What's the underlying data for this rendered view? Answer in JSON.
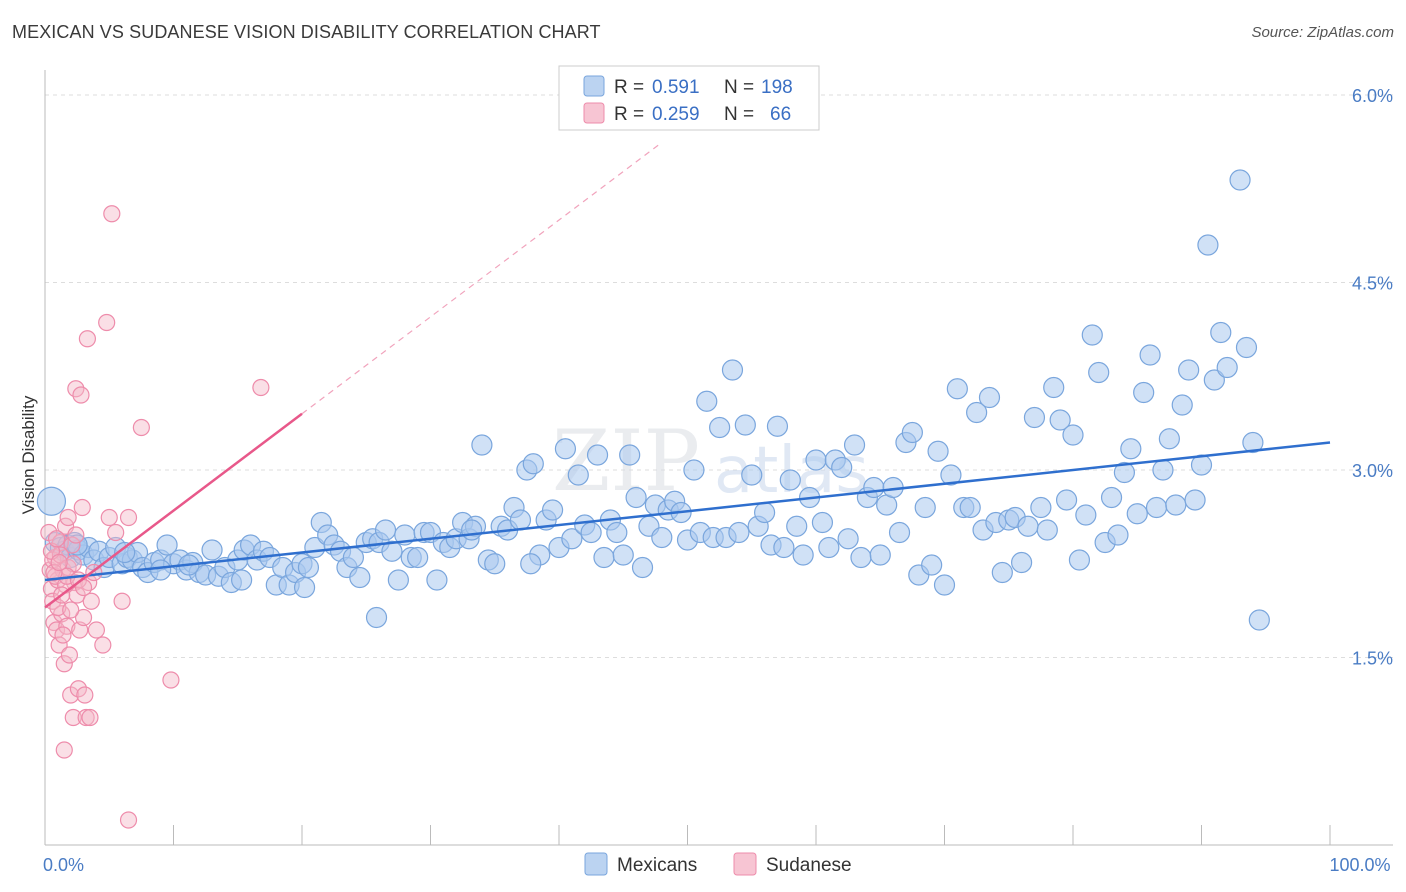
{
  "title": "MEXICAN VS SUDANESE VISION DISABILITY CORRELATION CHART",
  "source": "Source: ZipAtlas.com",
  "watermark": {
    "zip": "ZIP",
    "atlas": "atlas"
  },
  "colors": {
    "mexicans_fill": "#aac8ee",
    "mexicans_stroke": "#7aa6dd",
    "mexicans_line": "#2f6fce",
    "sudanese_fill": "#f5b7c8",
    "sudanese_stroke": "#ee8cab",
    "sudanese_line": "#e8588a",
    "axis_tick": "#4a7cc4",
    "grid": "#dddddd"
  },
  "legend": {
    "rows": [
      {
        "r_label": "R =",
        "r_value": "0.591",
        "n_label": "N =",
        "n_value": "198"
      },
      {
        "r_label": "R =",
        "r_value": "0.259",
        "n_label": "N =",
        "n_value": "66"
      }
    ]
  },
  "chart_data": {
    "type": "scatter",
    "title": "MEXICAN VS SUDANESE VISION DISABILITY CORRELATION CHART",
    "ylabel": "Vision Disability",
    "xlabel": "",
    "xlim": [
      0,
      100
    ],
    "ylim": [
      0.0,
      6.2
    ],
    "y_ticks": [
      {
        "value": 1.5,
        "label": "1.5%"
      },
      {
        "value": 3.0,
        "label": "3.0%"
      },
      {
        "value": 4.5,
        "label": "4.5%"
      },
      {
        "value": 6.0,
        "label": "6.0%"
      }
    ],
    "x_ticks": [
      {
        "value": 0,
        "label": "0.0%"
      },
      {
        "value": 100,
        "label": "100.0%"
      }
    ],
    "grid": true,
    "legend_position": "top-center",
    "series": [
      {
        "name": "Mexicans",
        "trend": {
          "x": [
            0,
            100
          ],
          "y": [
            2.12,
            3.22
          ],
          "dashed": false
        },
        "points": [
          [
            0.5,
            2.75
          ],
          [
            0.8,
            2.42
          ],
          [
            1.2,
            2.38
          ],
          [
            1.5,
            2.35
          ],
          [
            1.8,
            2.4
          ],
          [
            2.0,
            2.3
          ],
          [
            2.3,
            2.42
          ],
          [
            2.6,
            2.36
          ],
          [
            3.0,
            2.32
          ],
          [
            3.4,
            2.38
          ],
          [
            3.8,
            2.28
          ],
          [
            4.2,
            2.35
          ],
          [
            4.6,
            2.22
          ],
          [
            5.0,
            2.3
          ],
          [
            5.5,
            2.38
          ],
          [
            6.0,
            2.25
          ],
          [
            6.4,
            2.3
          ],
          [
            6.8,
            2.28
          ],
          [
            7.2,
            2.34
          ],
          [
            7.6,
            2.22
          ],
          [
            8.0,
            2.18
          ],
          [
            8.5,
            2.26
          ],
          [
            9.0,
            2.28
          ],
          [
            9.5,
            2.4
          ],
          [
            10.0,
            2.25
          ],
          [
            10.5,
            2.28
          ],
          [
            11.0,
            2.2
          ],
          [
            11.5,
            2.26
          ],
          [
            12.0,
            2.18
          ],
          [
            12.5,
            2.16
          ],
          [
            13.0,
            2.36
          ],
          [
            13.5,
            2.15
          ],
          [
            14.0,
            2.22
          ],
          [
            14.5,
            2.1
          ],
          [
            15.0,
            2.28
          ],
          [
            15.5,
            2.36
          ],
          [
            16.0,
            2.4
          ],
          [
            16.5,
            2.28
          ],
          [
            17.0,
            2.35
          ],
          [
            17.5,
            2.3
          ],
          [
            18.0,
            2.08
          ],
          [
            18.5,
            2.22
          ],
          [
            19.0,
            2.08
          ],
          [
            19.5,
            2.18
          ],
          [
            20.0,
            2.25
          ],
          [
            20.5,
            2.22
          ],
          [
            21.0,
            2.38
          ],
          [
            21.5,
            2.58
          ],
          [
            22.0,
            2.48
          ],
          [
            22.5,
            2.4
          ],
          [
            23.0,
            2.35
          ],
          [
            23.5,
            2.22
          ],
          [
            24.0,
            2.3
          ],
          [
            24.5,
            2.14
          ],
          [
            25.0,
            2.42
          ],
          [
            25.5,
            2.45
          ],
          [
            26.0,
            2.42
          ],
          [
            26.5,
            2.52
          ],
          [
            27.0,
            2.35
          ],
          [
            27.5,
            2.12
          ],
          [
            28.0,
            2.48
          ],
          [
            28.5,
            2.3
          ],
          [
            29.0,
            2.3
          ],
          [
            29.5,
            2.5
          ],
          [
            30.0,
            2.5
          ],
          [
            30.5,
            2.12
          ],
          [
            31.0,
            2.42
          ],
          [
            31.5,
            2.38
          ],
          [
            32.0,
            2.45
          ],
          [
            32.5,
            2.58
          ],
          [
            33.0,
            2.45
          ],
          [
            33.5,
            2.55
          ],
          [
            34.0,
            3.2
          ],
          [
            34.5,
            2.28
          ],
          [
            35.0,
            2.25
          ],
          [
            35.5,
            2.55
          ],
          [
            36.0,
            2.52
          ],
          [
            36.5,
            2.7
          ],
          [
            37.0,
            2.6
          ],
          [
            37.5,
            3.0
          ],
          [
            38.0,
            3.05
          ],
          [
            38.5,
            2.32
          ],
          [
            39.0,
            2.6
          ],
          [
            39.5,
            2.68
          ],
          [
            40.0,
            2.38
          ],
          [
            40.5,
            3.17
          ],
          [
            41.0,
            2.45
          ],
          [
            41.5,
            2.96
          ],
          [
            42.0,
            2.56
          ],
          [
            42.5,
            2.5
          ],
          [
            43.0,
            3.12
          ],
          [
            43.5,
            2.3
          ],
          [
            44.0,
            2.6
          ],
          [
            44.5,
            2.5
          ],
          [
            45.0,
            2.32
          ],
          [
            45.5,
            3.12
          ],
          [
            46.0,
            2.78
          ],
          [
            46.5,
            2.22
          ],
          [
            47.0,
            2.55
          ],
          [
            47.5,
            2.72
          ],
          [
            48.0,
            2.46
          ],
          [
            48.5,
            2.68
          ],
          [
            49.0,
            2.75
          ],
          [
            49.5,
            2.66
          ],
          [
            50.0,
            2.44
          ],
          [
            50.5,
            3.0
          ],
          [
            51.0,
            2.5
          ],
          [
            51.5,
            3.55
          ],
          [
            52.0,
            2.46
          ],
          [
            52.5,
            3.34
          ],
          [
            53.0,
            2.46
          ],
          [
            53.5,
            3.8
          ],
          [
            54.0,
            2.5
          ],
          [
            54.5,
            3.36
          ],
          [
            55.0,
            2.96
          ],
          [
            55.5,
            2.55
          ],
          [
            56.0,
            2.66
          ],
          [
            56.5,
            2.4
          ],
          [
            57.0,
            3.35
          ],
          [
            57.5,
            2.38
          ],
          [
            58.0,
            2.92
          ],
          [
            58.5,
            2.55
          ],
          [
            59.0,
            2.32
          ],
          [
            59.5,
            2.78
          ],
          [
            60.0,
            3.08
          ],
          [
            60.5,
            2.58
          ],
          [
            61.0,
            2.38
          ],
          [
            61.5,
            3.08
          ],
          [
            62.0,
            3.02
          ],
          [
            62.5,
            2.45
          ],
          [
            63.0,
            3.2
          ],
          [
            63.5,
            2.3
          ],
          [
            64.0,
            2.78
          ],
          [
            64.5,
            2.86
          ],
          [
            65.0,
            2.32
          ],
          [
            65.5,
            2.72
          ],
          [
            66.0,
            2.86
          ],
          [
            66.5,
            2.5
          ],
          [
            67.0,
            3.22
          ],
          [
            67.5,
            3.3
          ],
          [
            68.0,
            2.16
          ],
          [
            68.5,
            2.7
          ],
          [
            69.0,
            2.24
          ],
          [
            69.5,
            3.15
          ],
          [
            70.0,
            2.08
          ],
          [
            70.5,
            2.96
          ],
          [
            71.0,
            3.65
          ],
          [
            71.5,
            2.7
          ],
          [
            72.0,
            2.7
          ],
          [
            72.5,
            3.46
          ],
          [
            73.0,
            2.52
          ],
          [
            73.5,
            3.58
          ],
          [
            74.0,
            2.58
          ],
          [
            74.5,
            2.18
          ],
          [
            75.0,
            2.6
          ],
          [
            75.5,
            2.62
          ],
          [
            76.0,
            2.26
          ],
          [
            76.5,
            2.55
          ],
          [
            77.0,
            3.42
          ],
          [
            77.5,
            2.7
          ],
          [
            78.0,
            2.52
          ],
          [
            78.5,
            3.66
          ],
          [
            79.0,
            3.4
          ],
          [
            79.5,
            2.76
          ],
          [
            80.0,
            3.28
          ],
          [
            80.5,
            2.28
          ],
          [
            81.0,
            2.64
          ],
          [
            81.5,
            4.08
          ],
          [
            82.0,
            3.78
          ],
          [
            82.5,
            2.42
          ],
          [
            83.0,
            2.78
          ],
          [
            83.5,
            2.48
          ],
          [
            84.0,
            2.98
          ],
          [
            84.5,
            3.17
          ],
          [
            85.0,
            2.65
          ],
          [
            85.5,
            3.62
          ],
          [
            86.0,
            3.92
          ],
          [
            86.5,
            2.7
          ],
          [
            87.0,
            3.0
          ],
          [
            87.5,
            3.25
          ],
          [
            88.0,
            2.72
          ],
          [
            88.5,
            3.52
          ],
          [
            89.0,
            3.8
          ],
          [
            89.5,
            2.76
          ],
          [
            90.0,
            3.04
          ],
          [
            90.5,
            4.8
          ],
          [
            91.0,
            3.72
          ],
          [
            91.5,
            4.1
          ],
          [
            92.0,
            3.82
          ],
          [
            93.0,
            5.32
          ],
          [
            93.5,
            3.98
          ],
          [
            94.0,
            3.22
          ],
          [
            94.5,
            1.8
          ],
          [
            2.5,
            2.4
          ],
          [
            6.2,
            2.34
          ],
          [
            9.0,
            2.2
          ],
          [
            11.2,
            2.24
          ],
          [
            15.3,
            2.12
          ],
          [
            20.2,
            2.06
          ],
          [
            25.8,
            1.82
          ],
          [
            33.2,
            2.52
          ],
          [
            37.8,
            2.25
          ]
        ]
      },
      {
        "name": "Sudanese",
        "trend": {
          "x": [
            0,
            20
          ],
          "y": [
            1.9,
            3.45
          ],
          "dashed": false,
          "extension": {
            "x": [
              20,
              48
            ],
            "y": [
              3.45,
              5.62
            ],
            "dashed": true
          }
        },
        "points": [
          [
            0.3,
            2.5
          ],
          [
            0.4,
            2.2
          ],
          [
            0.5,
            2.05
          ],
          [
            0.6,
            1.95
          ],
          [
            0.7,
            1.78
          ],
          [
            0.8,
            2.3
          ],
          [
            0.9,
            1.72
          ],
          [
            1.0,
            2.12
          ],
          [
            1.1,
            1.6
          ],
          [
            1.2,
            2.42
          ],
          [
            1.3,
            1.85
          ],
          [
            1.4,
            2.2
          ],
          [
            1.5,
            1.45
          ],
          [
            1.6,
            2.55
          ],
          [
            1.7,
            1.75
          ],
          [
            1.8,
            2.62
          ],
          [
            1.9,
            1.52
          ],
          [
            2.0,
            1.2
          ],
          [
            2.1,
            2.4
          ],
          [
            2.2,
            1.02
          ],
          [
            2.3,
            2.1
          ],
          [
            2.4,
            3.65
          ],
          [
            2.5,
            2.0
          ],
          [
            2.6,
            1.25
          ],
          [
            2.7,
            1.72
          ],
          [
            2.8,
            3.6
          ],
          [
            2.9,
            2.7
          ],
          [
            3.0,
            1.82
          ],
          [
            3.1,
            1.2
          ],
          [
            3.2,
            1.02
          ],
          [
            3.3,
            4.05
          ],
          [
            3.4,
            2.1
          ],
          [
            3.5,
            1.02
          ],
          [
            3.6,
            1.95
          ],
          [
            3.8,
            2.18
          ],
          [
            4.0,
            1.72
          ],
          [
            4.5,
            1.6
          ],
          [
            4.8,
            4.18
          ],
          [
            5.0,
            2.62
          ],
          [
            5.2,
            5.05
          ],
          [
            5.5,
            2.5
          ],
          [
            6.0,
            1.95
          ],
          [
            6.5,
            2.62
          ],
          [
            7.5,
            3.34
          ],
          [
            9.8,
            1.32
          ],
          [
            16.8,
            3.66
          ],
          [
            1.5,
            0.76
          ],
          [
            6.5,
            0.2
          ],
          [
            0.6,
            2.28
          ],
          [
            0.8,
            2.15
          ],
          [
            1.0,
            1.9
          ],
          [
            1.2,
            2.32
          ],
          [
            1.4,
            1.68
          ],
          [
            1.6,
            2.08
          ],
          [
            1.8,
            2.22
          ],
          [
            2.0,
            1.88
          ],
          [
            2.2,
            2.25
          ],
          [
            0.5,
            2.35
          ],
          [
            0.9,
            2.45
          ],
          [
            1.3,
            2.0
          ],
          [
            1.7,
            2.15
          ],
          [
            2.4,
            2.48
          ],
          [
            0.7,
            2.18
          ],
          [
            1.1,
            2.26
          ],
          [
            2.6,
            2.12
          ],
          [
            3.0,
            2.06
          ]
        ]
      }
    ]
  },
  "bottom_legend": [
    {
      "label": "Mexicans"
    },
    {
      "label": "Sudanese"
    }
  ]
}
